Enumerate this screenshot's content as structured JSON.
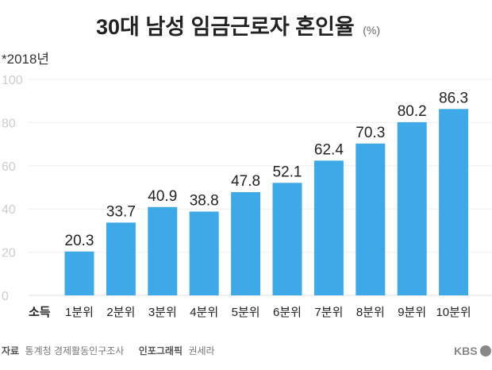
{
  "chart_data": {
    "type": "bar",
    "title": "30대 남성 임금근로자 혼인율",
    "unit": "(%)",
    "note": "*2018년",
    "xlabel": "소득",
    "ylabel": "",
    "categories": [
      "1분위",
      "2분위",
      "3분위",
      "4분위",
      "5분위",
      "6분위",
      "7분위",
      "8분위",
      "9분위",
      "10분위"
    ],
    "values": [
      20.3,
      33.7,
      40.9,
      38.8,
      47.8,
      52.1,
      62.4,
      70.3,
      80.2,
      86.3
    ],
    "ylim": [
      0,
      100
    ],
    "yticks": [
      0,
      20,
      40,
      60,
      80,
      100
    ],
    "grid": true,
    "bar_color": "#3fa9e8"
  },
  "footer": {
    "source_label": "자료",
    "source": "통계청 경제활동인구조사",
    "credit_label": "인포그래픽",
    "credit": "권세라",
    "logo": "KBS"
  }
}
